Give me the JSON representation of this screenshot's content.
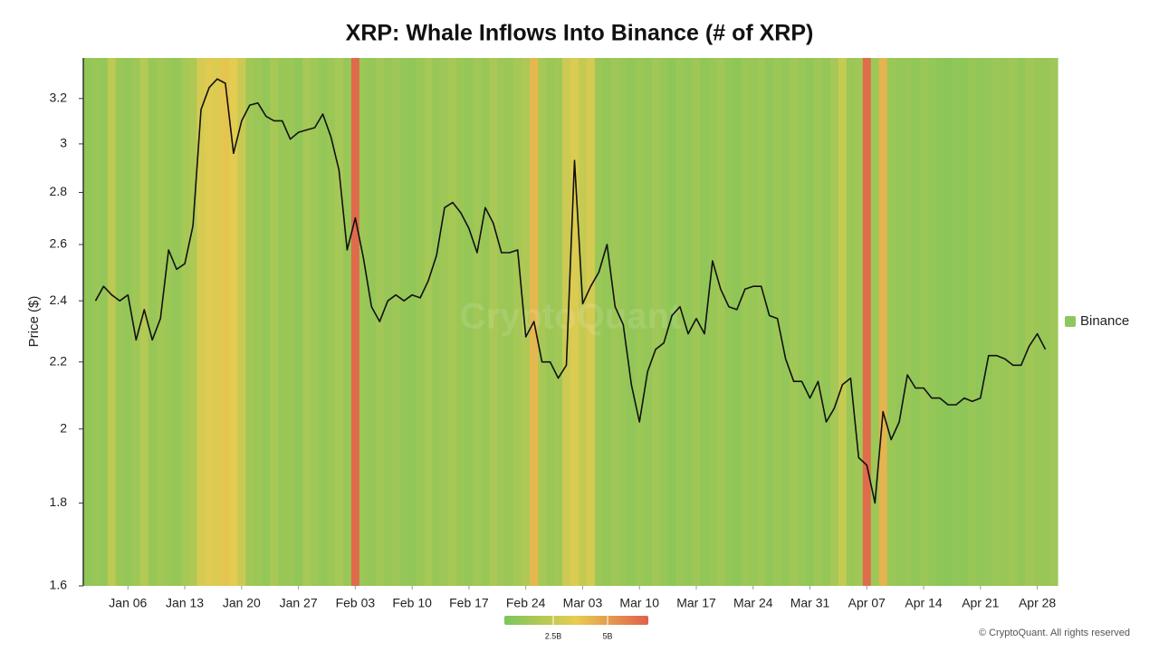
{
  "chart_data": {
    "type": "line",
    "title": "XRP: Whale Inflows Into Binance (# of XRP)",
    "y_label": "Price ($)",
    "watermark": "CryptoQuant",
    "footer": "© CryptoQuant. All rights reserved",
    "categories": [
      null,
      null,
      null,
      null,
      null,
      "Jan 06",
      null,
      null,
      null,
      null,
      null,
      null,
      "Jan 13",
      null,
      null,
      null,
      null,
      null,
      null,
      "Jan 20",
      null,
      null,
      null,
      null,
      null,
      null,
      "Jan 27",
      null,
      null,
      null,
      null,
      null,
      null,
      "Feb 03",
      null,
      null,
      null,
      null,
      null,
      null,
      "Feb 10",
      null,
      null,
      null,
      null,
      null,
      null,
      "Feb 17",
      null,
      null,
      null,
      null,
      null,
      null,
      "Feb 24",
      null,
      null,
      null,
      null,
      null,
      null,
      "Mar 03",
      null,
      null,
      null,
      null,
      null,
      null,
      "Mar 10",
      null,
      null,
      null,
      null,
      null,
      null,
      "Mar 17",
      null,
      null,
      null,
      null,
      null,
      null,
      "Mar 24",
      null,
      null,
      null,
      null,
      null,
      null,
      "Mar 31",
      null,
      null,
      null,
      null,
      null,
      null,
      "Apr 07",
      null,
      null,
      null,
      null,
      null,
      null,
      "Apr 14",
      null,
      null,
      null,
      null,
      null,
      null,
      "Apr 21",
      null,
      null,
      null,
      null,
      null,
      null,
      "Apr 28",
      null,
      null
    ],
    "price": {
      "color": "#111111",
      "values": [
        null,
        2.4,
        2.45,
        2.42,
        2.4,
        2.42,
        2.27,
        2.37,
        2.27,
        2.34,
        2.58,
        2.51,
        2.53,
        2.67,
        3.15,
        3.25,
        3.29,
        3.27,
        2.96,
        3.1,
        3.17,
        3.18,
        3.12,
        3.1,
        3.1,
        3.02,
        3.05,
        3.06,
        3.07,
        3.13,
        3.03,
        2.89,
        2.58,
        2.7,
        2.55,
        2.38,
        2.33,
        2.4,
        2.42,
        2.4,
        2.42,
        2.41,
        2.47,
        2.56,
        2.74,
        2.76,
        2.72,
        2.66,
        2.57,
        2.74,
        2.68,
        2.57,
        2.57,
        2.58,
        2.28,
        2.33,
        2.2,
        2.2,
        2.15,
        2.19,
        2.93,
        2.39,
        2.45,
        2.5,
        2.6,
        2.38,
        2.32,
        2.13,
        2.02,
        2.17,
        2.24,
        2.26,
        2.35,
        2.38,
        2.29,
        2.34,
        2.29,
        2.54,
        2.44,
        2.38,
        2.37,
        2.44,
        2.45,
        2.45,
        2.35,
        2.34,
        2.21,
        2.14,
        2.14,
        2.09,
        2.14,
        2.02,
        2.06,
        2.13,
        2.15,
        1.92,
        1.9,
        1.8,
        2.05,
        1.97,
        2.02,
        2.16,
        2.12,
        2.12,
        2.09,
        2.09,
        2.07,
        2.07,
        2.09,
        2.08,
        2.09,
        2.22,
        2.22,
        2.21,
        2.19,
        2.19,
        2.25,
        2.29,
        2.24,
        null
      ]
    },
    "heat": {
      "name": "Binance",
      "color": "#8cc862",
      "values": [
        900000000,
        1100000000,
        1000000000,
        2200000000,
        1200000000,
        1000000000,
        1300000000,
        2000000000,
        1100000000,
        1400000000,
        1200000000,
        1000000000,
        1500000000,
        1800000000,
        3000000000,
        3300000000,
        3200000000,
        3800000000,
        3400000000,
        2600000000,
        1400000000,
        1200000000,
        1000000000,
        1600000000,
        1100000000,
        1200000000,
        900000000,
        1500000000,
        1300000000,
        1000000000,
        1200000000,
        1500000000,
        1100000000,
        6600000000,
        1200000000,
        1000000000,
        1400000000,
        1100000000,
        1300000000,
        1000000000,
        900000000,
        1200000000,
        1500000000,
        1100000000,
        1300000000,
        1600000000,
        1200000000,
        1000000000,
        1400000000,
        1100000000,
        1700000000,
        1300000000,
        1200000000,
        1500000000,
        1800000000,
        4200000000,
        1600000000,
        1200000000,
        1400000000,
        2700000000,
        3200000000,
        2500000000,
        3000000000,
        1200000000,
        1000000000,
        1300000000,
        1100000000,
        900000000,
        1200000000,
        1000000000,
        1400000000,
        1100000000,
        800000000,
        1200000000,
        1000000000,
        1300000000,
        900000000,
        1100000000,
        1400000000,
        1000000000,
        800000000,
        1200000000,
        1100000000,
        1300000000,
        900000000,
        1200000000,
        1000000000,
        1400000000,
        1100000000,
        900000000,
        1300000000,
        1000000000,
        1500000000,
        2500000000,
        1200000000,
        1400000000,
        6500000000,
        1300000000,
        4300000000,
        1200000000,
        1000000000,
        1100000000,
        900000000,
        1200000000,
        1000000000,
        800000000,
        700000000,
        900000000,
        800000000,
        1100000000,
        900000000,
        1000000000,
        1200000000,
        1100000000,
        1300000000,
        1000000000,
        1400000000,
        1200000000,
        1100000000,
        1300000000
      ]
    },
    "color_scale": {
      "range": [
        250000000,
        6875000000
      ],
      "colors": [
        "#7cc55a",
        "#e8cc50",
        "#e0604c"
      ],
      "ticks": [
        {
          "value": 2500000000,
          "label": "2.5B"
        },
        {
          "value": 5000000000,
          "label": "5B"
        }
      ]
    },
    "ylim": [
      1.6,
      3.39
    ],
    "yticks": [
      1.6,
      1.8,
      2,
      2.2,
      2.4,
      2.6,
      2.8,
      3,
      3.2
    ],
    "log_y": true,
    "legend": "right"
  }
}
